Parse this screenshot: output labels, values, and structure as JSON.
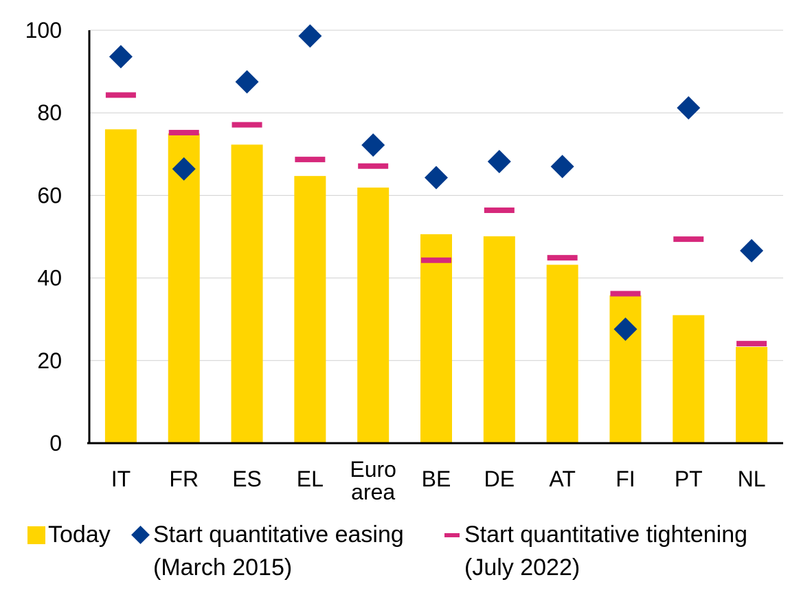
{
  "chart_data": {
    "type": "bar",
    "categories": [
      "IT",
      "FR",
      "ES",
      "EL",
      "Euro area",
      "BE",
      "DE",
      "AT",
      "FI",
      "PT",
      "NL"
    ],
    "category_lines": [
      [
        "IT"
      ],
      [
        "FR"
      ],
      [
        "ES"
      ],
      [
        "EL"
      ],
      [
        "Euro",
        "area"
      ],
      [
        "BE"
      ],
      [
        "DE"
      ],
      [
        "AT"
      ],
      [
        "FI"
      ],
      [
        "PT"
      ],
      [
        "NL"
      ]
    ],
    "ylim": [
      0,
      100
    ],
    "yticks": [
      0,
      20,
      40,
      60,
      80,
      100
    ],
    "ytick_labels": [
      "0",
      "20",
      "40",
      "60",
      "80",
      "100"
    ],
    "grid": true,
    "legend_position": "bottom",
    "series": [
      {
        "name": "Today",
        "type": "bar",
        "color": "#FFD500",
        "values": [
          76,
          75,
          72.3,
          64.7,
          61.9,
          50.6,
          50.1,
          43.2,
          35.8,
          31,
          23.3
        ]
      },
      {
        "name": "Start quantitative easing (March 2015)",
        "type": "marker-diamond",
        "color": "#003A8C",
        "values": [
          93.6,
          66.4,
          87.5,
          98.6,
          72.2,
          64.3,
          68.2,
          67,
          27.6,
          81.2,
          46.6
        ]
      },
      {
        "name": "Start quantitative tightening (July 2022)",
        "type": "marker-dash",
        "color": "#D6287B",
        "values": [
          84.3,
          75.2,
          77.1,
          68.7,
          67.1,
          44.3,
          56.4,
          44.9,
          36.2,
          49.4,
          24.1
        ]
      }
    ]
  },
  "legend": {
    "today": "Today",
    "qe_line1": "Start quantitative easing",
    "qe_line2": "(March 2015)",
    "qt_line1": "Start quantitative tightening",
    "qt_line2": "(July 2022)"
  }
}
